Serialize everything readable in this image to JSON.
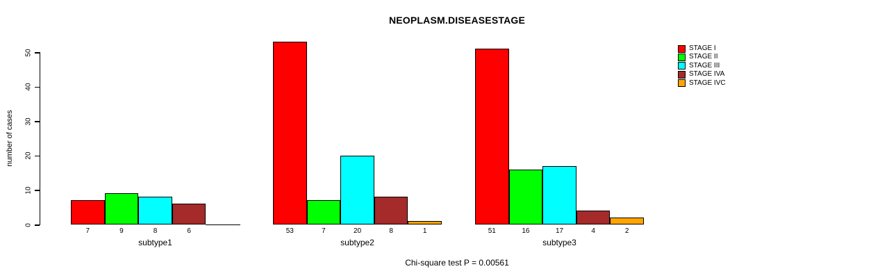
{
  "chart_data": {
    "type": "bar",
    "title": "NEOPLASM.DISEASESTAGE",
    "ylabel": "number of cases",
    "caption": "Chi-square test P = 0.00561",
    "ylim": [
      0,
      50
    ],
    "yticks": [
      0,
      10,
      20,
      30,
      40,
      50
    ],
    "grid": false,
    "legend_position": "right-outside",
    "categories": [
      "subtype1",
      "subtype2",
      "subtype3"
    ],
    "series": [
      {
        "name": "STAGE I",
        "color": "#FF0000",
        "values": [
          7,
          53,
          51
        ]
      },
      {
        "name": "STAGE II",
        "color": "#00FF00",
        "values": [
          9,
          7,
          16
        ]
      },
      {
        "name": "STAGE III",
        "color": "#00FFFF",
        "values": [
          8,
          20,
          17
        ]
      },
      {
        "name": "STAGE IVA",
        "color": "#A52A2A",
        "values": [
          6,
          8,
          4
        ]
      },
      {
        "name": "STAGE IVC",
        "color": "#FFA500",
        "values": [
          0,
          1,
          2
        ]
      }
    ],
    "bar_labels": [
      [
        "7",
        "9",
        "8",
        "6",
        ""
      ],
      [
        "53",
        "7",
        "20",
        "8",
        "1"
      ],
      [
        "51",
        "16",
        "17",
        "4",
        "2"
      ]
    ]
  }
}
